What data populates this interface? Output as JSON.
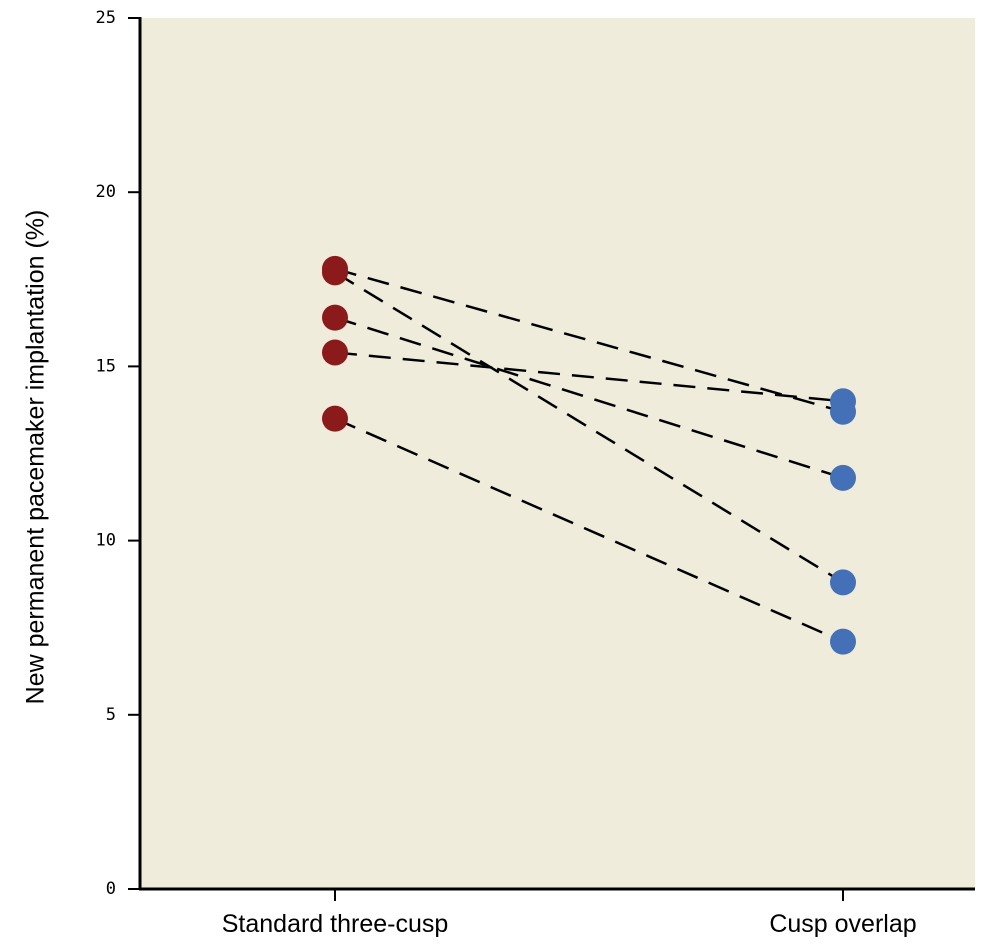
{
  "chart_data": {
    "type": "line",
    "ylabel": "New permanent pacemaker implantation (%)",
    "xlabel": "",
    "categories": [
      "Standard three-cusp",
      "Cusp overlap"
    ],
    "ylim": [
      0,
      25
    ],
    "yticks": [
      "0",
      "5",
      "10",
      "15",
      "20",
      "25"
    ],
    "series": [
      {
        "values": [
          17.8,
          13.7
        ]
      },
      {
        "values": [
          17.7,
          8.8
        ]
      },
      {
        "values": [
          16.4,
          11.8
        ]
      },
      {
        "values": [
          15.4,
          14.0
        ]
      },
      {
        "values": [
          13.5,
          7.1
        ]
      }
    ],
    "grid": false,
    "legend": "none",
    "colors": {
      "plot_background": "#f0ecdb",
      "left_points": "#8b1a1a",
      "right_points": "#4470b8",
      "connector": "#000000",
      "axis": "#000000"
    },
    "line_style": "dashed"
  }
}
